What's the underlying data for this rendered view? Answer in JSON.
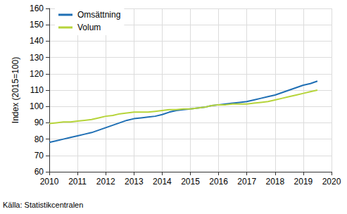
{
  "chart_data": {
    "type": "line",
    "y_label": "Index (2015=100)",
    "source": "Källa: Statistikcentralen",
    "x": [
      2010,
      2010.25,
      2010.5,
      2010.75,
      2011,
      2011.25,
      2011.5,
      2011.75,
      2012,
      2012.25,
      2012.5,
      2012.75,
      2013,
      2013.25,
      2013.5,
      2013.75,
      2014,
      2014.25,
      2014.5,
      2014.75,
      2015,
      2015.25,
      2015.5,
      2015.75,
      2016,
      2016.25,
      2016.5,
      2016.75,
      2017,
      2017.25,
      2017.5,
      2017.75,
      2018,
      2018.25,
      2018.5,
      2018.75,
      2019,
      2019.25,
      2019.5
    ],
    "series": [
      {
        "name": "Omsättning",
        "color": "#1f6fb4",
        "values": [
          78,
          79,
          80,
          81,
          82,
          83,
          84,
          85.5,
          87,
          88.5,
          90,
          91.5,
          92.5,
          93,
          93.5,
          94,
          95,
          96.5,
          97.5,
          98,
          98.5,
          99,
          99.5,
          100.5,
          101,
          101.5,
          102,
          102.5,
          103,
          104,
          105,
          106,
          107,
          108.5,
          110,
          111.5,
          113,
          114,
          115.5
        ]
      },
      {
        "name": "Volum",
        "color": "#b6d43a",
        "values": [
          89.5,
          90,
          90.5,
          90.5,
          91,
          91.5,
          92,
          93,
          94,
          94.5,
          95.5,
          96,
          96.5,
          96.5,
          96.5,
          97,
          97.5,
          98,
          98,
          98.5,
          98.5,
          99,
          99.5,
          100.5,
          101,
          101,
          101.5,
          101.5,
          101.5,
          102,
          102.5,
          103,
          104,
          105,
          106,
          107,
          108,
          109,
          110
        ]
      }
    ],
    "xlim": [
      2010,
      2020
    ],
    "xticks": [
      2010,
      2011,
      2012,
      2013,
      2014,
      2015,
      2016,
      2017,
      2018,
      2019,
      2020
    ],
    "ylim": [
      60,
      160
    ],
    "yticks": [
      60,
      70,
      80,
      90,
      100,
      110,
      120,
      130,
      140,
      150,
      160
    ],
    "grid": true,
    "legend": "upper left"
  }
}
